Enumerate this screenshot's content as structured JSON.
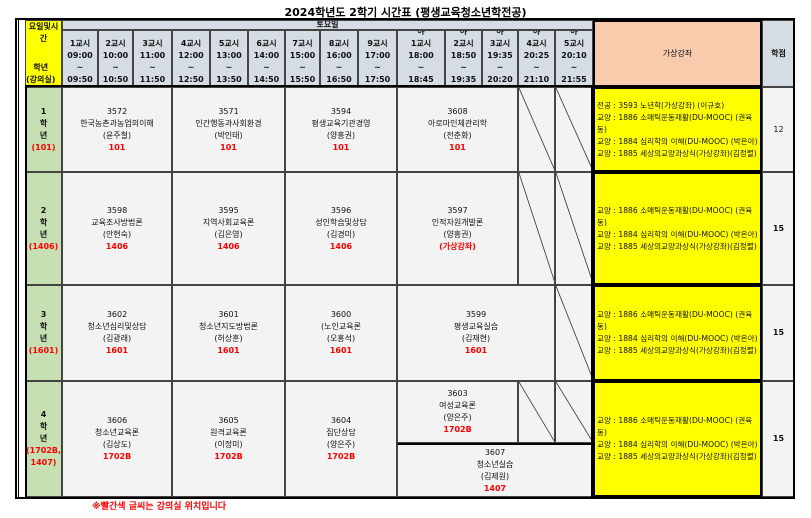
{
  "title": "2024학년도 2학기 시간표 (평생교육청소년학전공)",
  "header": {
    "corner_top": "요일및시간",
    "corner_bottom": "학년\n(강의실)",
    "day": "토요일",
    "periods": [
      {
        "label": "1교시",
        "start": "09:00",
        "end": "09:50"
      },
      {
        "label": "2교시",
        "start": "10:00",
        "end": "10:50"
      },
      {
        "label": "3교시",
        "start": "11:00",
        "end": "11:50"
      },
      {
        "label": "4교시",
        "start": "12:00",
        "end": "12:50"
      },
      {
        "label": "5교시",
        "start": "13:00",
        "end": "13:50"
      },
      {
        "label": "6교시",
        "start": "14:00",
        "end": "14:50"
      },
      {
        "label": "7교시",
        "start": "15:00",
        "end": "15:50"
      },
      {
        "label": "8교시",
        "start": "16:00",
        "end": "16:50"
      },
      {
        "label": "9교시",
        "start": "17:00",
        "end": "17:50"
      },
      {
        "label": "야\n1교시",
        "start": "18:00",
        "end": "18:45"
      },
      {
        "label": "야\n2교시",
        "start": "18:50",
        "end": "19:35"
      },
      {
        "label": "야\n3교시",
        "start": "19:35",
        "end": "20:20"
      },
      {
        "label": "야\n4교시",
        "start": "20:25",
        "end": "21:10"
      },
      {
        "label": "야\n5교시",
        "start": "20:10",
        "end": "21:55"
      }
    ],
    "virtual": "가상강좌",
    "credits": "학점"
  },
  "rows": [
    {
      "grade": "1\n학\n년",
      "room": "(101)",
      "credits": "12",
      "virtual": [
        "전공 : 3593 노년학(가상강좌) (이규호)",
        "교양 : 1886 소매틱운동재활(DU-MOOC) (권육동)",
        "교양 : 1884 심리학의 이해(DU-MOOC) (박은아)",
        "교양 : 1885 세상의교양과상식(가상강좌)(김정렬)"
      ],
      "courses": [
        {
          "periods": [
            1,
            3
          ],
          "code": "3572",
          "name": "한국농촌과농업의이해",
          "prof": "(윤주철)",
          "room": "101"
        },
        {
          "periods": [
            4,
            6
          ],
          "code": "3571",
          "name": "인간행동과사회환경",
          "prof": "(박인태)",
          "room": "101"
        },
        {
          "periods": [
            7,
            9
          ],
          "code": "3594",
          "name": "평생교육기관경영",
          "prof": "(양흥권)",
          "room": "101"
        },
        {
          "periods": [
            10,
            12
          ],
          "code": "3608",
          "name": "아로마인체관리학",
          "prof": "(전춘화)",
          "room": "101"
        }
      ],
      "empty": [
        13,
        14
      ]
    },
    {
      "grade": "2\n학\n년",
      "room": "(1406)",
      "credits": "15",
      "virtual": [
        "교양 : 1886 소매틱운동재활(DU-MOOC) (권육동)",
        "교양 : 1884 심리학의 이해(DU-MOOC) (박은아)",
        "교양 : 1885 세상의교양과상식(가상강좌)(김정렬)"
      ],
      "courses": [
        {
          "periods": [
            1,
            3
          ],
          "code": "3598",
          "name": "교육조사방법론",
          "prof": "(안현숙)",
          "room": "1406"
        },
        {
          "periods": [
            4,
            6
          ],
          "code": "3595",
          "name": "지역사회교육론",
          "prof": "(김은영)",
          "room": "1406"
        },
        {
          "periods": [
            7,
            9
          ],
          "code": "3596",
          "name": "성인학습및상담",
          "prof": "(김경미)",
          "room": "1406"
        },
        {
          "periods": [
            10,
            12
          ],
          "code": "3597",
          "name": "인적자원개발론",
          "prof": "(양흥권)",
          "room": "(가상강좌)"
        }
      ],
      "empty": [
        13,
        14
      ]
    },
    {
      "grade": "3\n학\n년",
      "room": "(1601)",
      "credits": "15",
      "virtual": [
        "교양 : 1886 소매틱운동재활(DU-MOOC) (권육동)",
        "교양 : 1884 심리학의 이해(DU-MOOC) (박은아)",
        "교양 : 1885 세상의교양과상식(가상강좌)(김정렬)"
      ],
      "courses": [
        {
          "periods": [
            1,
            3
          ],
          "code": "3602",
          "name": "청소년심리및상담",
          "prof": "(김광래)",
          "room": "1601"
        },
        {
          "periods": [
            4,
            6
          ],
          "code": "3601",
          "name": "청소년지도방법론",
          "prof": "(허상훈)",
          "room": "1601"
        },
        {
          "periods": [
            7,
            9
          ],
          "code": "3600",
          "name": "(노인교육론",
          "prof": "(오홍석)",
          "room": "1601"
        },
        {
          "periods": [
            10,
            13
          ],
          "code": "3599",
          "name": "평생교육실습",
          "prof": "(김재현)",
          "room": "1601"
        }
      ],
      "empty": [
        14
      ]
    },
    {
      "grade": "4\n학\n년",
      "room": "(1702B,\n1407)",
      "credits": "15",
      "virtual": [
        "교양 : 1886 소매틱운동재활(DU-MOOC) (권육동)",
        "교양 : 1884 심리학의 이해(DU-MOOC) (박은아)",
        "교양 : 1885 세상의교양과상식(가상강좌)(김정렬)"
      ],
      "courses": [
        {
          "periods": [
            1,
            3
          ],
          "code": "3606",
          "name": "청소년교육론",
          "prof": "(김상도)",
          "room": "1702B"
        },
        {
          "periods": [
            4,
            6
          ],
          "code": "3605",
          "name": "원격교육론",
          "prof": "(이정미)",
          "room": "1702B"
        },
        {
          "periods": [
            7,
            9
          ],
          "code": "3604",
          "name": "집단상담",
          "prof": "(양은주)",
          "room": "1702B"
        },
        {
          "periods": [
            10,
            12
          ],
          "half": "top",
          "code": "3603",
          "name": "여성교육론",
          "prof": "(양은주)",
          "room": "1702B"
        },
        {
          "periods": [
            10,
            14
          ],
          "half": "bottom",
          "code": "3607",
          "name": "청소년실습",
          "prof": "(김제원)",
          "room": "1407"
        }
      ],
      "empty": [
        13,
        14
      ],
      "empty_half": "top"
    }
  ],
  "footer": "※빨간색 글씨는 강의실 위치입니다",
  "colors": {
    "header": "#d6dce4",
    "grade": "#c6e0b4",
    "virtual": "#ffff00",
    "virtual_header": "#f8cbad",
    "room_text": "#ff0000",
    "cell": "#f3f3f3"
  }
}
